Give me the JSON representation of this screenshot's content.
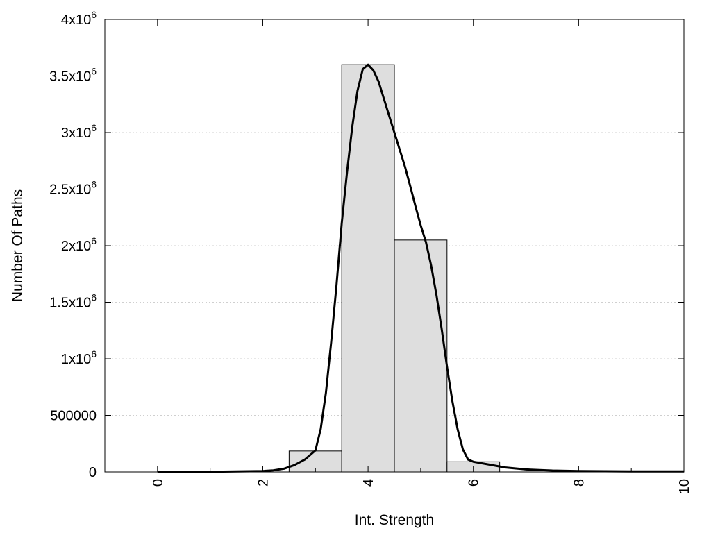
{
  "chart_data": {
    "type": "bar",
    "xlabel": "Int. Strength",
    "ylabel": "Number Of Paths",
    "xlim": [
      -1,
      10
    ],
    "ylim": [
      0,
      4000000
    ],
    "grid": true,
    "x_ticks": [
      {
        "value": 0,
        "label": "0"
      },
      {
        "value": 2,
        "label": "2"
      },
      {
        "value": 4,
        "label": "4"
      },
      {
        "value": 6,
        "label": "6"
      },
      {
        "value": 8,
        "label": "8"
      },
      {
        "value": 10,
        "label": "10"
      }
    ],
    "y_ticks": [
      {
        "value": 0,
        "mant": "0",
        "exp": ""
      },
      {
        "value": 500000,
        "mant": "500000",
        "exp": ""
      },
      {
        "value": 1000000,
        "mant": "1x10",
        "exp": "6"
      },
      {
        "value": 1500000,
        "mant": "1.5x10",
        "exp": "6"
      },
      {
        "value": 2000000,
        "mant": "2x10",
        "exp": "6"
      },
      {
        "value": 2500000,
        "mant": "2.5x10",
        "exp": "6"
      },
      {
        "value": 3000000,
        "mant": "3x10",
        "exp": "6"
      },
      {
        "value": 3500000,
        "mant": "3.5x10",
        "exp": "6"
      },
      {
        "value": 4000000,
        "mant": "4x10",
        "exp": "6"
      }
    ],
    "bars": [
      {
        "x": 0,
        "value": 0
      },
      {
        "x": 1,
        "value": 0
      },
      {
        "x": 2,
        "value": 0
      },
      {
        "x": 3,
        "value": 185000
      },
      {
        "x": 4,
        "value": 3600000
      },
      {
        "x": 5,
        "value": 2050000
      },
      {
        "x": 6,
        "value": 90000
      },
      {
        "x": 7,
        "value": 0
      },
      {
        "x": 8,
        "value": 0
      },
      {
        "x": 9,
        "value": 0
      }
    ],
    "bar_width": 1,
    "bar_color": "#dedede",
    "curve": {
      "color": "#000000",
      "points": [
        [
          0,
          0
        ],
        [
          0.5,
          0
        ],
        [
          1,
          1000
        ],
        [
          1.5,
          4000
        ],
        [
          2,
          8000
        ],
        [
          2.2,
          14000
        ],
        [
          2.4,
          28000
        ],
        [
          2.6,
          60000
        ],
        [
          2.8,
          110000
        ],
        [
          3,
          190000
        ],
        [
          3.1,
          380000
        ],
        [
          3.2,
          700000
        ],
        [
          3.3,
          1150000
        ],
        [
          3.4,
          1650000
        ],
        [
          3.5,
          2200000
        ],
        [
          3.6,
          2650000
        ],
        [
          3.7,
          3050000
        ],
        [
          3.8,
          3370000
        ],
        [
          3.9,
          3560000
        ],
        [
          4,
          3600000
        ],
        [
          4.1,
          3550000
        ],
        [
          4.2,
          3450000
        ],
        [
          4.3,
          3300000
        ],
        [
          4.4,
          3150000
        ],
        [
          4.5,
          3000000
        ],
        [
          4.6,
          2850000
        ],
        [
          4.7,
          2700000
        ],
        [
          4.8,
          2530000
        ],
        [
          4.9,
          2350000
        ],
        [
          5,
          2180000
        ],
        [
          5.1,
          2030000
        ],
        [
          5.2,
          1820000
        ],
        [
          5.3,
          1560000
        ],
        [
          5.4,
          1260000
        ],
        [
          5.5,
          930000
        ],
        [
          5.6,
          630000
        ],
        [
          5.7,
          380000
        ],
        [
          5.8,
          200000
        ],
        [
          5.9,
          110000
        ],
        [
          6,
          90000
        ],
        [
          6.3,
          65000
        ],
        [
          6.6,
          40000
        ],
        [
          7,
          22000
        ],
        [
          7.5,
          12000
        ],
        [
          8,
          8000
        ],
        [
          8.5,
          6000
        ],
        [
          9,
          5000
        ],
        [
          9.5,
          4000
        ],
        [
          10,
          4000
        ]
      ]
    }
  }
}
